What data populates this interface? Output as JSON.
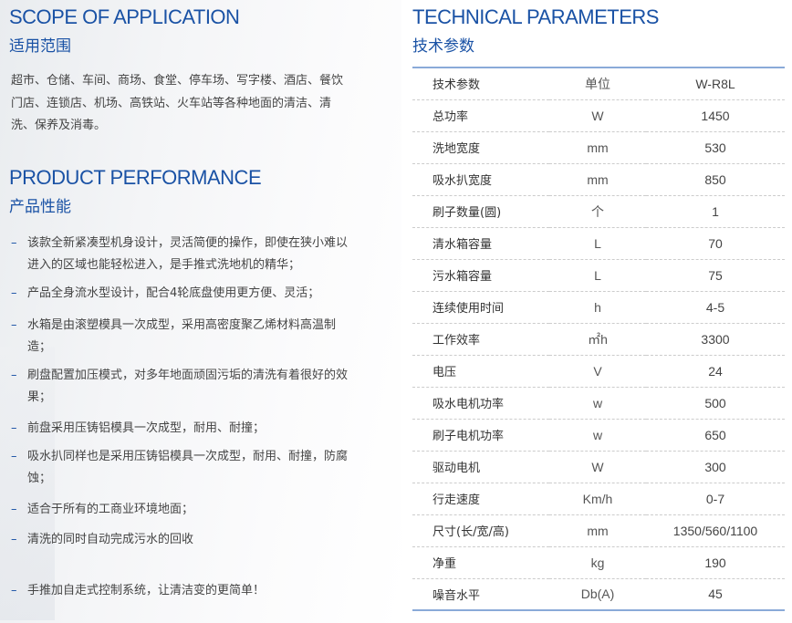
{
  "scope": {
    "title_en": "SCOPE OF APPLICATION",
    "title_cn": "适用范围",
    "text": "超市、仓储、车间、商场、食堂、停车场、写字楼、酒店、餐饮门店、连锁店、机场、高铁站、火车站等各种地面的清洁、清洗、保养及消毒。"
  },
  "performance": {
    "title_en": "PRODUCT PERFORMANCE",
    "title_cn": "产品性能",
    "bullet_marker": "–",
    "items": [
      "该款全新紧凑型机身设计，灵活简便的操作，即使在狭小难以进入的区域也能轻松进入，是手推式洗地机的精华；",
      "产品全身流水型设计，配合4轮底盘使用更方便、灵活；",
      "水箱是由滚塑模具一次成型，采用高密度聚乙烯材料高温制造；",
      "刷盘配置加压模式，对多年地面顽固污垢的清洗有着很好的效果；",
      "前盘采用压铸铝模具一次成型，耐用、耐撞；",
      "吸水扒同样也是采用压铸铝模具一次成型，耐用、耐撞，防腐蚀；",
      "适合于所有的工商业环境地面；",
      "清洗的同时自动完成污水的回收",
      "手推加自走式控制系统，让清洁变的更简单！"
    ]
  },
  "tech": {
    "title_en": "TECHNICAL PARAMETERS",
    "title_cn": "技术参数",
    "rows": [
      [
        "技术参数",
        "单位",
        "W-R8L"
      ],
      [
        "总功率",
        "W",
        "1450"
      ],
      [
        "洗地宽度",
        "mm",
        "530"
      ],
      [
        "吸水扒宽度",
        "mm",
        "850"
      ],
      [
        "刷子数量(圆)",
        "个",
        "1"
      ],
      [
        "清水箱容量",
        "L",
        "70"
      ],
      [
        "污水箱容量",
        "L",
        "75"
      ],
      [
        "连续使用时间",
        "h",
        "4-5"
      ],
      [
        "工作效率",
        "㎡h",
        "3300"
      ],
      [
        "电压",
        "V",
        "24"
      ],
      [
        "吸水电机功率",
        "w",
        "500"
      ],
      [
        "刷子电机功率",
        "w",
        "650"
      ],
      [
        "驱动电机",
        "W",
        "300"
      ],
      [
        "行走速度",
        "Km/h",
        "0-7"
      ],
      [
        "尺寸(长/宽/高)",
        "mm",
        "1350/560/1100"
      ],
      [
        "净重",
        "kg",
        "190"
      ],
      [
        "噪音水平",
        "Db(A)",
        "45"
      ]
    ]
  },
  "colors": {
    "heading": "#1a52a5",
    "table_rule": "#8aaad8"
  }
}
